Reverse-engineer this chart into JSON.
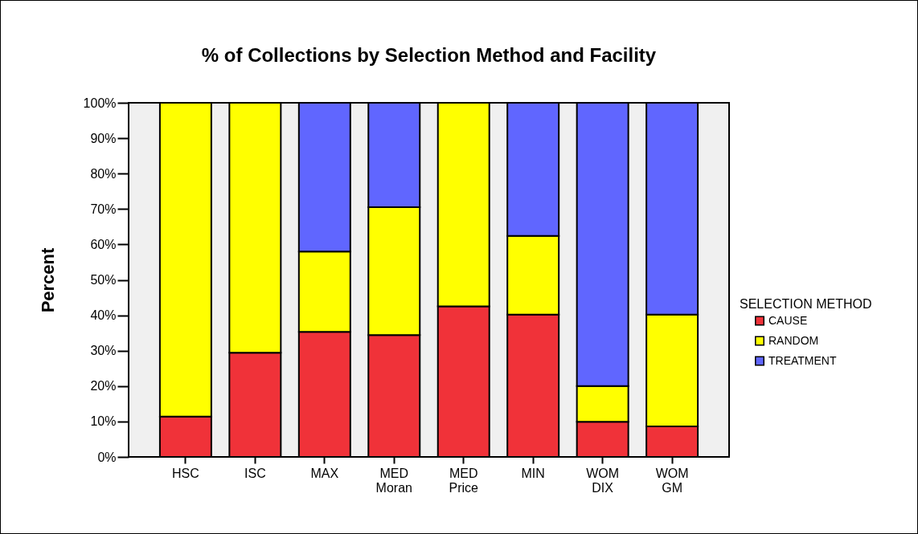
{
  "chart_data": {
    "type": "bar",
    "title": "% of Collections by Selection Method and Facility",
    "ylabel": "Percent",
    "legend_title": "SELECTION METHOD",
    "categories": [
      "HSC",
      "ISC",
      "MAX",
      "MED Moran",
      "MED Price",
      "MIN",
      "WOM DIX",
      "WOM GM"
    ],
    "series": [
      {
        "name": "CAUSE",
        "color": "#f03239",
        "values": [
          11.4,
          29.4,
          35.3,
          34.4,
          42.5,
          40.2,
          9.9,
          8.6
        ]
      },
      {
        "name": "RANDOM",
        "color": "#ffff00",
        "values": [
          88.6,
          70.6,
          22.7,
          36.1,
          57.5,
          22.2,
          10.1,
          31.6
        ]
      },
      {
        "name": "TREATMENT",
        "color": "#6066ff",
        "values": [
          null,
          null,
          42.0,
          29.5,
          null,
          37.6,
          80.0,
          59.8
        ]
      }
    ],
    "stacked": true,
    "ylim": [
      0,
      100
    ],
    "yticks": [
      {
        "value": 0,
        "label": "0%"
      },
      {
        "value": 10,
        "label": "10%"
      },
      {
        "value": 20,
        "label": "20%"
      },
      {
        "value": 30,
        "label": "30%"
      },
      {
        "value": 40,
        "label": "40%"
      },
      {
        "value": 50,
        "label": "50%"
      },
      {
        "value": 60,
        "label": "60%"
      },
      {
        "value": 70,
        "label": "70%"
      },
      {
        "value": 80,
        "label": "80%"
      },
      {
        "value": 90,
        "label": "90%"
      },
      {
        "value": 100,
        "label": "100%"
      }
    ],
    "grid": false,
    "legend": "right"
  }
}
